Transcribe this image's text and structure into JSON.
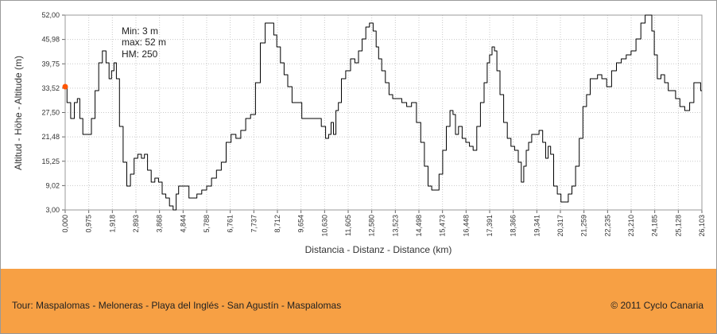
{
  "chart_data": {
    "type": "line",
    "xlabel": "Distancia - Distanz - Distance (km)",
    "ylabel": "Altitud - Höhe - Altitude (m)",
    "xlim": [
      0,
      26.103
    ],
    "ylim": [
      3.0,
      52.0
    ],
    "grid": true,
    "x_tick_labels": [
      "0,000",
      "0,975",
      "1,918",
      "2,893",
      "3,868",
      "4,844",
      "5,788",
      "6,761",
      "7,737",
      "8,712",
      "9,654",
      "10,630",
      "11,605",
      "12,580",
      "13,523",
      "14,498",
      "15,473",
      "16,448",
      "17,391",
      "18,366",
      "19,341",
      "20,317",
      "21,259",
      "22,235",
      "23,210",
      "24,185",
      "25,128",
      "26,103"
    ],
    "y_tick_labels": [
      "52,00",
      "45,98",
      "39,75",
      "33,52",
      "27,50",
      "21,48",
      "15,25",
      "9,02",
      "3,00"
    ],
    "stats": [
      "Min: 3 m",
      "max: 52 m",
      "HM: 250"
    ],
    "start_marker": {
      "x": 0,
      "y": 34,
      "color": "#ff5500"
    },
    "line_color": "#000000",
    "x": [
      0,
      0.15,
      0.3,
      0.45,
      0.55,
      0.65,
      0.8,
      1.0,
      1.15,
      1.3,
      1.45,
      1.6,
      1.75,
      1.85,
      1.95,
      2.05,
      2.15,
      2.3,
      2.45,
      2.6,
      2.75,
      2.9,
      3.05,
      3.2,
      3.3,
      3.45,
      3.6,
      3.75,
      3.9,
      4.05,
      4.2,
      4.35,
      4.5,
      4.6,
      4.7,
      4.85,
      5.0,
      5.15,
      5.3,
      5.5,
      5.7,
      5.9,
      6.1,
      6.3,
      6.5,
      6.7,
      6.9,
      7.1,
      7.3,
      7.5,
      7.7,
      7.9,
      8.1,
      8.3,
      8.5,
      8.6,
      8.75,
      8.9,
      9.05,
      9.2,
      9.4,
      9.6,
      9.8,
      10.0,
      10.2,
      10.4,
      10.6,
      10.75,
      10.85,
      10.95,
      11.05,
      11.15,
      11.25,
      11.4,
      11.6,
      11.8,
      11.95,
      12.1,
      12.25,
      12.4,
      12.55,
      12.7,
      12.8,
      12.9,
      13.05,
      13.2,
      13.35,
      13.5,
      13.7,
      13.9,
      14.1,
      14.3,
      14.5,
      14.65,
      14.8,
      14.95,
      15.1,
      15.25,
      15.4,
      15.55,
      15.7,
      15.85,
      15.95,
      16.05,
      16.2,
      16.35,
      16.5,
      16.65,
      16.8,
      16.95,
      17.1,
      17.25,
      17.35,
      17.45,
      17.55,
      17.65,
      17.75,
      17.9,
      18.05,
      18.2,
      18.35,
      18.5,
      18.65,
      18.75,
      18.85,
      18.95,
      19.05,
      19.2,
      19.35,
      19.5,
      19.65,
      19.75,
      19.85,
      19.95,
      20.1,
      20.25,
      20.4,
      20.55,
      20.7,
      20.85,
      21.0,
      21.15,
      21.3,
      21.45,
      21.6,
      21.75,
      21.9,
      22.1,
      22.3,
      22.5,
      22.7,
      22.9,
      23.1,
      23.3,
      23.5,
      23.7,
      23.85,
      24.0,
      24.1,
      24.2,
      24.35,
      24.5,
      24.65,
      24.8,
      24.95,
      25.1,
      25.3,
      25.5,
      25.7,
      25.85,
      26.0,
      26.103
    ],
    "y": [
      34,
      30,
      26,
      30,
      31,
      26,
      22,
      22,
      26,
      33,
      40,
      43,
      40,
      36,
      38,
      40,
      36,
      24,
      15,
      9,
      12,
      16,
      17,
      16,
      17,
      13,
      10,
      11,
      10,
      7,
      6,
      4,
      3,
      7,
      9,
      9,
      9,
      6,
      6,
      7,
      8,
      9,
      11,
      13,
      15,
      20,
      22,
      21,
      23,
      26,
      27,
      35,
      45,
      50,
      50,
      47,
      44,
      40,
      37,
      34,
      30,
      30,
      26,
      26,
      26,
      26,
      24,
      21,
      22,
      25,
      22,
      28,
      30,
      36,
      38,
      41,
      40,
      43,
      46,
      49,
      50,
      48,
      44,
      41,
      38,
      35,
      32,
      31,
      31,
      30,
      29,
      30,
      25,
      20,
      14,
      9,
      8,
      8,
      12,
      18,
      24,
      28,
      27,
      22,
      24,
      21,
      20,
      19,
      18,
      24,
      30,
      35,
      40,
      42,
      44,
      43,
      38,
      32,
      25,
      21,
      19,
      18,
      15,
      10,
      14,
      18,
      20,
      22,
      22,
      23,
      20,
      16,
      19,
      17,
      9,
      7,
      5,
      5,
      7,
      9,
      14,
      21,
      29,
      32,
      36,
      36,
      37,
      36,
      34,
      38,
      40,
      41,
      42,
      43,
      46,
      50,
      52,
      52,
      48,
      42,
      36,
      37,
      35,
      33,
      33,
      31,
      29,
      28,
      30,
      35,
      35,
      33
    ]
  },
  "footer": {
    "tour": "Tour: Maspalomas - Meloneras - Playa del Inglés - San Agustín - Maspalomas",
    "copyright": "© 2011 Cyclo Canaria",
    "background": "#f7a044"
  }
}
